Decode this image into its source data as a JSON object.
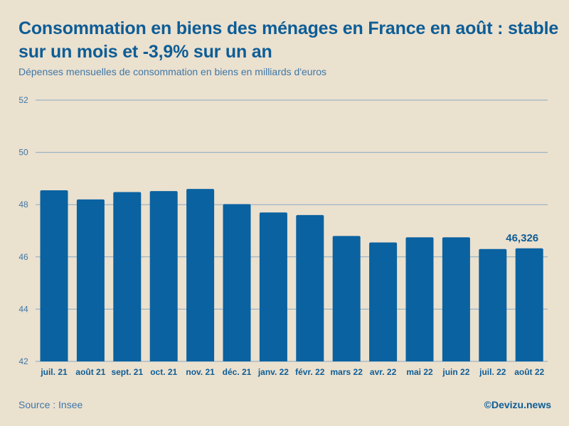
{
  "header": {
    "title": "Consommation en biens des ménages en France en août : stable sur un mois et -3,9% sur un an",
    "subtitle": "Dépenses mensuelles de consommation en biens en milliards d'euros"
  },
  "footer": {
    "source": "Source : Insee",
    "credit": "©Devizu.news"
  },
  "colors": {
    "bar": "#0a62a0",
    "grid": "#8aa9c2",
    "tick_text": "#3f77a6",
    "label_text": "#0d5d96",
    "background": "#ebe1cf"
  },
  "chart_data": {
    "type": "bar",
    "title": "Consommation en biens des ménages en France en août : stable sur un mois et -3,9% sur un an",
    "subtitle": "Dépenses mensuelles de consommation en biens en milliards d'euros",
    "xlabel": "",
    "ylabel": "",
    "ylim": [
      42,
      52
    ],
    "yticks": [
      "42",
      "44",
      "46",
      "48",
      "50",
      "52"
    ],
    "grid": true,
    "categories": [
      "juil. 21",
      "août 21",
      "sept. 21",
      "oct. 21",
      "nov. 21",
      "déc. 21",
      "janv. 22",
      "févr. 22",
      "mars 22",
      "avr. 22",
      "mai 22",
      "juin 22",
      "juil. 22",
      "août 22"
    ],
    "values": [
      48.55,
      48.2,
      48.48,
      48.52,
      48.6,
      48.02,
      47.7,
      47.6,
      46.8,
      46.55,
      46.75,
      46.75,
      46.3,
      46.326
    ],
    "annotations": [
      {
        "index": 13,
        "text": "46,326"
      }
    ]
  }
}
